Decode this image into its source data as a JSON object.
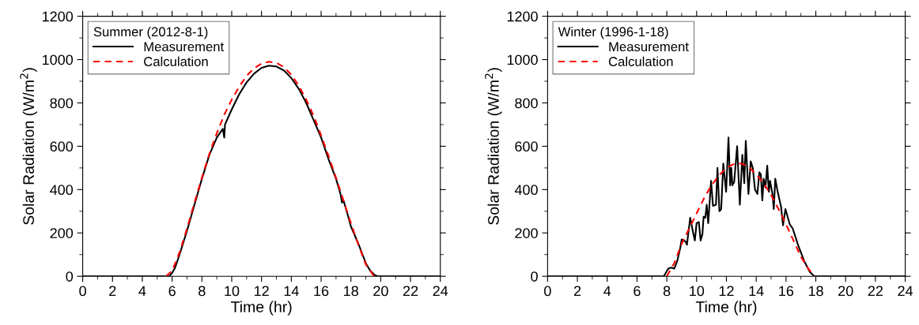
{
  "chart_data": [
    {
      "type": "line",
      "xlabel": "Time (hr)",
      "ylabel": "Solar Radiation (W/m$^{2}$)",
      "legend_title": "Summer (2012-8-1)",
      "legend": "top left",
      "grid": false,
      "xlim": [
        0,
        24
      ],
      "ylim": [
        0,
        1200
      ],
      "xticks": [
        0,
        2,
        4,
        6,
        8,
        10,
        12,
        14,
        16,
        18,
        20,
        22,
        24
      ],
      "yticks": [
        0,
        200,
        400,
        600,
        800,
        1000,
        1200
      ],
      "series": [
        {
          "name": "Measurement",
          "color": "#000000",
          "line_style": "solid",
          "x": [
            0,
            5.8,
            6.0,
            6.2,
            6.5,
            7,
            7.5,
            8,
            8.5,
            9,
            9.4,
            9.5,
            9.55,
            10,
            10.5,
            11,
            11.5,
            12,
            12.5,
            13,
            13.5,
            14,
            14.5,
            15,
            15.5,
            16,
            16.5,
            17,
            17.3,
            17.4,
            17.5,
            17.8,
            18,
            18.5,
            19,
            19.3,
            19.6,
            19.8,
            24
          ],
          "values": [
            0,
            0,
            15,
            40,
            100,
            210,
            330,
            450,
            560,
            640,
            680,
            640,
            700,
            770,
            840,
            895,
            935,
            962,
            972,
            968,
            950,
            915,
            865,
            800,
            720,
            640,
            540,
            450,
            380,
            340,
            350,
            280,
            230,
            150,
            60,
            25,
            5,
            0,
            0
          ]
        },
        {
          "name": "Calculation",
          "color": "#ff0000",
          "line_style": "dashed",
          "x": [
            5.6,
            6,
            6.5,
            7,
            7.5,
            8,
            8.5,
            9,
            9.5,
            10,
            10.5,
            11,
            11.5,
            12,
            12.5,
            13,
            13.5,
            14,
            14.5,
            15,
            15.5,
            16,
            16.5,
            17,
            17.5,
            18,
            18.5,
            19,
            19.5,
            19.7
          ],
          "values": [
            0,
            25,
            110,
            220,
            340,
            455,
            565,
            660,
            745,
            815,
            875,
            925,
            960,
            982,
            990,
            985,
            965,
            930,
            880,
            815,
            740,
            650,
            555,
            455,
            350,
            245,
            145,
            55,
            5,
            0
          ]
        }
      ]
    },
    {
      "type": "line",
      "xlabel": "Time (hr)",
      "ylabel": "Solar Radiation (W/m$^{2}$)",
      "legend_title": "Winter (1996-1-18)",
      "legend": "top left",
      "grid": false,
      "xlim": [
        0,
        24
      ],
      "ylim": [
        0,
        1200
      ],
      "xticks": [
        0,
        2,
        4,
        6,
        8,
        10,
        12,
        14,
        16,
        18,
        20,
        22,
        24
      ],
      "yticks": [
        0,
        200,
        400,
        600,
        800,
        1000,
        1200
      ],
      "series": [
        {
          "name": "Measurement",
          "color": "#000000",
          "line_style": "solid",
          "x": [
            0,
            7.8,
            8.1,
            8.3,
            8.5,
            8.7,
            8.9,
            9.0,
            9.26,
            9.35,
            9.57,
            9.77,
            9.88,
            10.0,
            10.15,
            10.27,
            10.39,
            10.47,
            10.58,
            10.68,
            10.78,
            10.97,
            11.1,
            11.3,
            11.4,
            11.53,
            11.65,
            11.79,
            11.98,
            12.14,
            12.25,
            12.33,
            12.4,
            12.52,
            12.72,
            12.9,
            13.07,
            13.2,
            13.3,
            13.48,
            13.63,
            13.77,
            13.92,
            14.08,
            14.21,
            14.31,
            14.41,
            14.5,
            14.62,
            14.74,
            14.85,
            14.93,
            15.09,
            15.18,
            15.28,
            15.44,
            15.67,
            15.8,
            15.96,
            16.25,
            16.45,
            16.83,
            17.22,
            17.6,
            17.9,
            24
          ],
          "values": [
            0,
            0,
            35,
            40,
            35,
            70,
            130,
            170,
            160,
            145,
            270,
            200,
            165,
            245,
            250,
            165,
            195,
            275,
            270,
            330,
            245,
            440,
            325,
            330,
            500,
            300,
            310,
            520,
            390,
            640,
            420,
            500,
            420,
            435,
            600,
            330,
            560,
            430,
            625,
            380,
            530,
            500,
            400,
            380,
            480,
            470,
            350,
            450,
            410,
            510,
            390,
            440,
            380,
            310,
            450,
            390,
            320,
            235,
            310,
            240,
            220,
            140,
            70,
            20,
            0,
            0
          ]
        },
        {
          "name": "Calculation",
          "color": "#ff0000",
          "line_style": "dashed",
          "x": [
            8.0,
            8.5,
            9,
            9.5,
            10,
            10.5,
            11,
            11.5,
            12,
            12.5,
            13,
            13.5,
            14,
            14.5,
            15,
            15.5,
            16,
            16.5,
            17,
            17.5,
            17.9
          ],
          "values": [
            0,
            60,
            150,
            220,
            290,
            360,
            420,
            465,
            500,
            518,
            520,
            505,
            470,
            430,
            375,
            310,
            240,
            165,
            90,
            35,
            0
          ]
        }
      ]
    }
  ]
}
